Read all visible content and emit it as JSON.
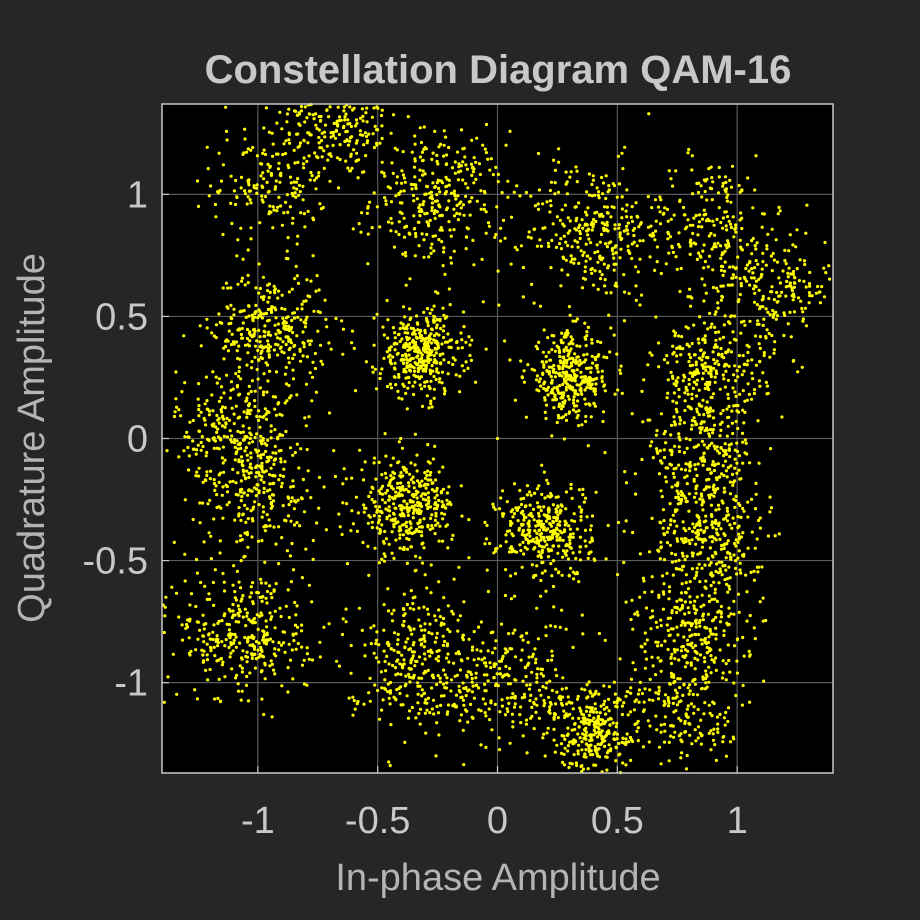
{
  "chart_data": {
    "type": "scatter",
    "title": "Constellation Diagram QAM-16",
    "xlabel": "In-phase Amplitude",
    "ylabel": "Quadrature Amplitude",
    "xlim": [
      -1.4,
      1.4
    ],
    "ylim": [
      -1.37,
      1.37
    ],
    "xticks": [
      -1,
      -0.5,
      0,
      0.5,
      1
    ],
    "xtick_labels": [
      "-1",
      "-0.5",
      "0",
      "0.5",
      "1"
    ],
    "yticks": [
      -1,
      -0.5,
      0,
      0.5,
      1
    ],
    "ytick_labels": [
      "-1",
      "-0.5",
      "0",
      "0.5",
      "1"
    ],
    "grid": true,
    "legend": "none",
    "colors": {
      "figure_background": "#262626",
      "axes_background": "#000000",
      "grid": "#5a5a5a",
      "axes_box": "#c8c8c8",
      "marker": "#ffff00",
      "title": "#c8c8c8",
      "labels": "#b4b4b4",
      "ticks": "#c8c8c8"
    },
    "marker": "dot",
    "clusters": [
      {
        "center": [
          -0.65,
          1.3
        ],
        "spread": 0.12,
        "count": 220
      },
      {
        "center": [
          -0.95,
          1.05
        ],
        "spread": 0.12,
        "count": 180
      },
      {
        "center": [
          -0.25,
          0.98
        ],
        "spread": 0.14,
        "count": 320
      },
      {
        "center": [
          0.4,
          0.85
        ],
        "spread": 0.14,
        "count": 300
      },
      {
        "center": [
          0.88,
          0.88
        ],
        "spread": 0.14,
        "count": 200
      },
      {
        "center": [
          1.15,
          0.62
        ],
        "spread": 0.13,
        "count": 220
      },
      {
        "center": [
          -0.95,
          0.45
        ],
        "spread": 0.12,
        "count": 320
      },
      {
        "center": [
          -1.1,
          0.05
        ],
        "spread": 0.12,
        "count": 220
      },
      {
        "center": [
          -1.0,
          -0.2
        ],
        "spread": 0.13,
        "count": 260
      },
      {
        "center": [
          -0.32,
          0.35
        ],
        "spread": 0.09,
        "count": 380
      },
      {
        "center": [
          0.3,
          0.25
        ],
        "spread": 0.09,
        "count": 360
      },
      {
        "center": [
          -0.38,
          -0.28
        ],
        "spread": 0.1,
        "count": 380
      },
      {
        "center": [
          0.2,
          -0.38
        ],
        "spread": 0.1,
        "count": 360
      },
      {
        "center": [
          0.88,
          0.25
        ],
        "spread": 0.12,
        "count": 300
      },
      {
        "center": [
          0.85,
          -0.1
        ],
        "spread": 0.12,
        "count": 240
      },
      {
        "center": [
          0.88,
          -0.42
        ],
        "spread": 0.12,
        "count": 300
      },
      {
        "center": [
          0.8,
          -0.8
        ],
        "spread": 0.12,
        "count": 240
      },
      {
        "center": [
          -1.05,
          -0.8
        ],
        "spread": 0.14,
        "count": 340
      },
      {
        "center": [
          -0.35,
          -0.9
        ],
        "spread": 0.14,
        "count": 320
      },
      {
        "center": [
          0.4,
          -1.2
        ],
        "spread": 0.1,
        "count": 320
      },
      {
        "center": [
          0.05,
          -1.0
        ],
        "spread": 0.13,
        "count": 220
      },
      {
        "center": [
          0.8,
          -1.12
        ],
        "spread": 0.12,
        "count": 180
      }
    ],
    "points": [
      [
        0.0,
        0.0
      ]
    ]
  }
}
